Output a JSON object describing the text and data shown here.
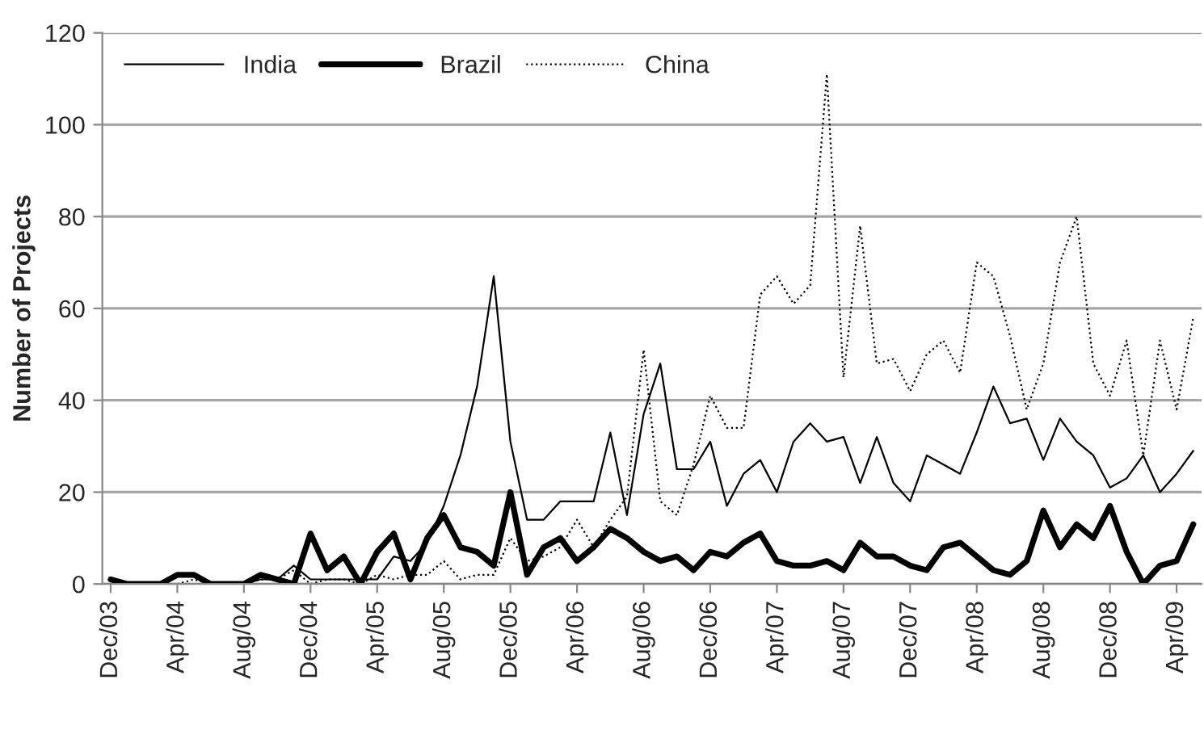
{
  "chart_data": {
    "type": "line",
    "ylabel": "Number of Projects",
    "categories": [
      "Dec/03",
      null,
      null,
      null,
      "Apr/04",
      null,
      null,
      null,
      "Aug/04",
      null,
      null,
      null,
      "Dec/04",
      null,
      null,
      null,
      "Apr/05",
      null,
      null,
      null,
      "Aug/05",
      null,
      null,
      null,
      "Dec/05",
      null,
      null,
      null,
      "Apr/06",
      null,
      null,
      null,
      "Aug/06",
      null,
      null,
      null,
      "Dec/06",
      null,
      null,
      null,
      "Apr/07",
      null,
      null,
      null,
      "Aug/07",
      null,
      null,
      null,
      "Dec/07",
      null,
      null,
      null,
      "Apr/08",
      null,
      null,
      null,
      "Aug/08",
      null,
      null,
      null,
      "Dec/08",
      null,
      null,
      null,
      "Apr/09",
      null
    ],
    "series": [
      {
        "name": "India",
        "color": "#000000",
        "line_style": "solid",
        "values": [
          0,
          0,
          0,
          0,
          0,
          0,
          0,
          0,
          0,
          1,
          1,
          4,
          1,
          1,
          1,
          1,
          1,
          6,
          5,
          9,
          17,
          28,
          43,
          67,
          31,
          14,
          14,
          18,
          18,
          18,
          33,
          15,
          37,
          48,
          25,
          25,
          31,
          17,
          24,
          27,
          20,
          31,
          35,
          31,
          32,
          22,
          32,
          22,
          18,
          28,
          26,
          24,
          33,
          43,
          35,
          36,
          27,
          36,
          31,
          28,
          21,
          23,
          28,
          20,
          24,
          29
        ]
      },
      {
        "name": "Brazil",
        "color": "#000000",
        "line_style": "solid",
        "values": [
          1,
          0,
          0,
          0,
          2,
          2,
          0,
          0,
          0,
          2,
          1,
          0,
          11,
          3,
          6,
          0,
          7,
          11,
          1,
          10,
          15,
          8,
          7,
          4,
          20,
          2,
          8,
          10,
          5,
          8,
          12,
          10,
          7,
          5,
          6,
          3,
          7,
          6,
          9,
          11,
          5,
          4,
          4,
          5,
          3,
          9,
          6,
          6,
          4,
          3,
          8,
          9,
          6,
          3,
          2,
          5,
          16,
          8,
          13,
          10,
          17,
          7,
          0,
          4,
          5,
          13
        ]
      },
      {
        "name": "China",
        "color": "#000000",
        "line_style": "dotted",
        "values": [
          0,
          0,
          0,
          0,
          0,
          1,
          0,
          0,
          0,
          1,
          1,
          3,
          0,
          1,
          1,
          0,
          2,
          1,
          2,
          2,
          5,
          1,
          2,
          2,
          10,
          5,
          6,
          8,
          14,
          8,
          14,
          19,
          51,
          18,
          15,
          26,
          41,
          34,
          34,
          63,
          67,
          61,
          65,
          111,
          45,
          78,
          48,
          49,
          42,
          50,
          53,
          46,
          70,
          67,
          54,
          38,
          48,
          70,
          80,
          48,
          41,
          53,
          28,
          53,
          38,
          58
        ]
      }
    ],
    "ylim": [
      0,
      120
    ],
    "yticks": [
      0,
      20,
      40,
      60,
      80,
      100,
      120
    ],
    "grid": "y",
    "legend": "top left",
    "marker": "none"
  }
}
